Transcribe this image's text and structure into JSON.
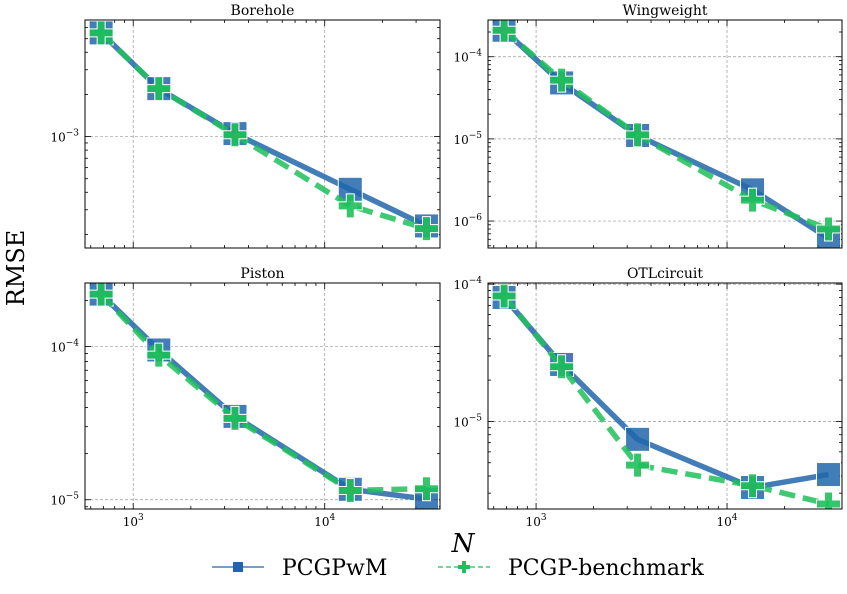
{
  "figure": {
    "ylabel": "RMSE",
    "xlabel": "N"
  },
  "legend": {
    "placement": "bottom-center",
    "items": [
      {
        "label": "PCGPwM",
        "color": "#2166ac",
        "marker": "square",
        "linestyle": "solid"
      },
      {
        "label": "PCGP-benchmark",
        "color": "#1fbf5a",
        "marker": "plus",
        "linestyle": "dashed"
      }
    ]
  },
  "chart_data": [
    {
      "type": "line",
      "title": "Borehole",
      "x_scale": "log",
      "y_scale": "log",
      "xlim": [
        560,
        40000
      ],
      "ylim": [
        0.00016,
        0.0068
      ],
      "x_ticks": [
        {
          "v": 1000,
          "label": ""
        },
        {
          "v": 10000,
          "label": ""
        }
      ],
      "y_ticks": [
        {
          "v": 0.001,
          "label": "10−3"
        }
      ],
      "grid": true,
      "x": [
        680,
        1360,
        3400,
        13600,
        34000
      ],
      "series": [
        {
          "name": "PCGPwM",
          "values": [
            0.0055,
            0.0022,
            0.00105,
            0.00042,
            0.00023
          ]
        },
        {
          "name": "PCGP-benchmark",
          "values": [
            0.0055,
            0.0022,
            0.00103,
            0.00032,
            0.00022
          ]
        }
      ]
    },
    {
      "type": "line",
      "title": "Wingweight",
      "x_scale": "log",
      "y_scale": "log",
      "xlim": [
        560,
        40000
      ],
      "ylim": [
        4.7e-07,
        0.00028
      ],
      "x_ticks": [
        {
          "v": 1000,
          "label": ""
        },
        {
          "v": 10000,
          "label": ""
        }
      ],
      "y_ticks": [
        {
          "v": 0.0001,
          "label": "10−4"
        },
        {
          "v": 1e-05,
          "label": "10−5"
        },
        {
          "v": 1e-06,
          "label": "10−6"
        }
      ],
      "grid": true,
      "x": [
        680,
        1360,
        3400,
        13600,
        34000
      ],
      "series": [
        {
          "name": "PCGPwM",
          "values": [
            0.00021,
            4.8e-05,
            1.1e-05,
            2.4e-06,
            6.2e-07
          ]
        },
        {
          "name": "PCGP-benchmark",
          "values": [
            0.00021,
            5.2e-05,
            1.12e-05,
            1.8e-06,
            8e-07
          ]
        }
      ]
    },
    {
      "type": "line",
      "title": "Piston",
      "x_scale": "log",
      "y_scale": "log",
      "xlim": [
        560,
        40000
      ],
      "ylim": [
        8.7e-06,
        0.00026
      ],
      "x_ticks": [
        {
          "v": 1000,
          "label": "103"
        },
        {
          "v": 10000,
          "label": "104"
        }
      ],
      "y_ticks": [
        {
          "v": 0.0001,
          "label": "10−4"
        },
        {
          "v": 1e-05,
          "label": "10−5"
        }
      ],
      "grid": true,
      "x": [
        680,
        1360,
        3400,
        13600,
        34000
      ],
      "series": [
        {
          "name": "PCGPwM",
          "values": [
            0.00022,
            9.5e-05,
            3.5e-05,
            1.17e-05,
            1.01e-05
          ]
        },
        {
          "name": "PCGP-benchmark",
          "values": [
            0.00022,
            8.8e-05,
            3.4e-05,
            1.15e-05,
            1.18e-05
          ]
        }
      ]
    },
    {
      "type": "line",
      "title": "OTLcircuit",
      "x_scale": "log",
      "y_scale": "log",
      "xlim": [
        560,
        40000
      ],
      "ylim": [
        2.3e-06,
        0.000102
      ],
      "x_ticks": [
        {
          "v": 1000,
          "label": "103"
        },
        {
          "v": 10000,
          "label": "104"
        }
      ],
      "y_ticks": [
        {
          "v": 0.0001,
          "label": "10−4"
        },
        {
          "v": 1e-05,
          "label": "10−5"
        }
      ],
      "grid": true,
      "x": [
        680,
        1360,
        3400,
        13600,
        34000
      ],
      "series": [
        {
          "name": "PCGPwM",
          "values": [
            8e-05,
            2.6e-05,
            7.4e-06,
            3.3e-06,
            4.1e-06
          ]
        },
        {
          "name": "PCGP-benchmark",
          "values": [
            8.2e-05,
            2.5e-05,
            4.8e-06,
            3.4e-06,
            2.5e-06
          ]
        }
      ]
    }
  ]
}
